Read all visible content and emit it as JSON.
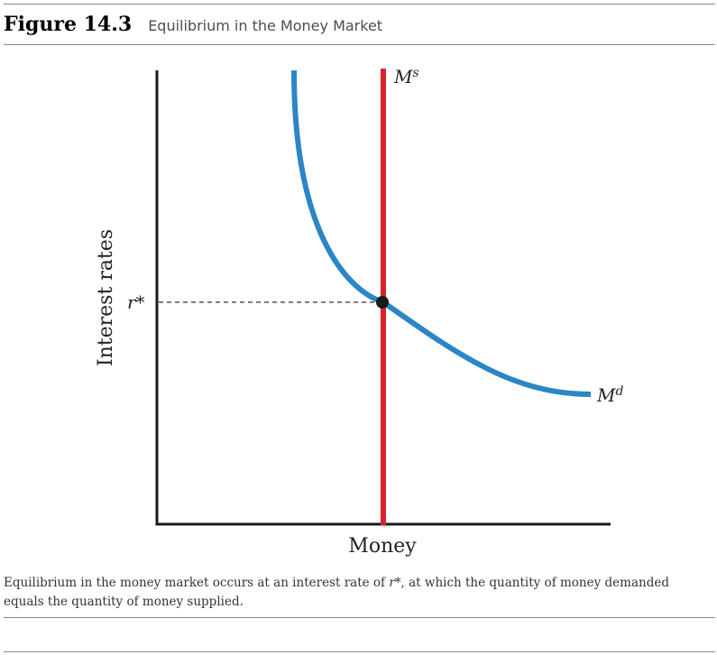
{
  "figure": {
    "number": "Figure 14.3",
    "title": "Equilibrium in the Money Market"
  },
  "chart": {
    "y_axis_label": "Interest rates",
    "x_axis_label": "Money",
    "equilibrium_rate_label": "r*",
    "supply_curve_label": {
      "base": "M",
      "superscript": "s"
    },
    "demand_curve_label": {
      "base": "M",
      "superscript": "d"
    },
    "colors": {
      "supply": "#d7232b",
      "demand": "#2b86c5",
      "axis": "#1a1a1a",
      "equilibrium_point": "#1a1a1a",
      "guide_line": "#333333"
    }
  },
  "caption": {
    "before": "Equilibrium in the money market occurs at an interest rate of ",
    "emph": "r*",
    "after": ", at which the quantity of money demanded equals the quantity of money supplied."
  }
}
